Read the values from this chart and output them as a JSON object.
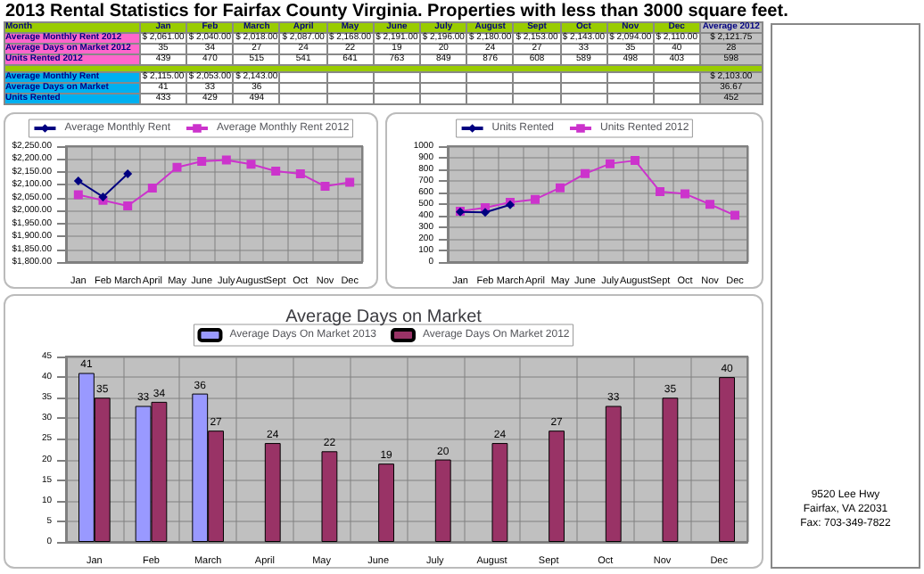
{
  "chart_data": [
    {
      "type": "other",
      "title": "2013 Rental Statistics for Fairfax County Virginia. Properties with less than 3000 square feet.",
      "xlabel": "Month",
      "categories": [
        "Jan",
        "Feb",
        "March",
        "April",
        "May",
        "June",
        "July",
        "August",
        "Sept",
        "Oct",
        "Nov",
        "Dec",
        "Average 2012"
      ],
      "data_labels": true,
      "series": [
        {
          "name": "Average Monthly Rent 2012",
          "colors": [
            "#ffffff",
            "#ffffff",
            "#ffffff",
            "#ffffff",
            "#ffffff",
            "#ffffff",
            "#ffffff",
            "#ffffff",
            "#ffffff",
            "#ffffff",
            "#ffffff",
            "#ffffff",
            "#c0c0c0"
          ],
          "values": [
            2061,
            2040,
            2018,
            2087,
            2168,
            2191,
            2196,
            2180,
            2153,
            2143,
            2094,
            2110,
            2121.75
          ],
          "value_labels": [
            "$ 2,061.00",
            "$ 2,040.00",
            "$ 2,018.00",
            "$ 2,087.00",
            "$ 2,168.00",
            "$ 2,191.00",
            "$ 2,196.00",
            "$ 2,180.00",
            "$ 2,153.00",
            "$ 2,143.00",
            "$ 2,094.00",
            "$ 2,110.00",
            "$ 2,121.75"
          ]
        },
        {
          "name": "Average Days on Market 2012",
          "colors": [
            "#ffffff",
            "#ffffff",
            "#ffffff",
            "#ffffff",
            "#ffffff",
            "#ffffff",
            "#ffffff",
            "#ffffff",
            "#ffffff",
            "#ffffff",
            "#ffffff",
            "#ffffff",
            "#c0c0c0"
          ],
          "values": [
            35,
            34,
            27,
            24,
            22,
            19,
            20,
            24,
            27,
            33,
            35,
            40,
            28
          ]
        },
        {
          "name": "Units Rented 2012",
          "colors": [
            "#ffffff",
            "#ffffff",
            "#ffffff",
            "#ffffff",
            "#ffffff",
            "#ffffff",
            "#ffffff",
            "#ffffff",
            "#ffffff",
            "#ffffff",
            "#ffffff",
            "#ffffff",
            "#c0c0c0"
          ],
          "values": [
            439,
            470,
            515,
            541,
            641,
            763,
            849,
            876,
            608,
            589,
            498,
            403,
            598
          ]
        },
        {
          "name": "Average Monthly Rent",
          "colors": [
            "#ffffff",
            "#ffffff",
            "#ffffff",
            "#ffffff",
            "#ffffff",
            "#ffffff",
            "#ffffff",
            "#ffffff",
            "#ffffff",
            "#ffffff",
            "#ffffff",
            "#ffffff",
            "#c0c0c0"
          ],
          "values": [
            2115,
            2053,
            2143,
            null,
            null,
            null,
            null,
            null,
            null,
            null,
            null,
            null,
            2103
          ],
          "value_labels": [
            "$ 2,115.00",
            "$ 2,053.00",
            "$ 2,143.00",
            null,
            null,
            null,
            null,
            null,
            null,
            null,
            null,
            null,
            "$ 2,103.00"
          ]
        },
        {
          "name": "Average Days on Market",
          "colors": [
            "#ffffff",
            "#ffffff",
            "#ffffff",
            "#ffffff",
            "#ffffff",
            "#ffffff",
            "#ffffff",
            "#ffffff",
            "#ffffff",
            "#ffffff",
            "#ffffff",
            "#ffffff",
            "#c0c0c0"
          ],
          "values": [
            41,
            33,
            36,
            null,
            null,
            null,
            null,
            null,
            null,
            null,
            null,
            null,
            36.67
          ]
        },
        {
          "name": "Units Rented",
          "colors": [
            "#ffffff",
            "#ffffff",
            "#ffffff",
            "#ffffff",
            "#ffffff",
            "#ffffff",
            "#ffffff",
            "#ffffff",
            "#ffffff",
            "#ffffff",
            "#ffffff",
            "#ffffff",
            "#c0c0c0"
          ],
          "values": [
            433,
            429,
            494,
            null,
            null,
            null,
            null,
            null,
            null,
            null,
            null,
            null,
            452
          ]
        }
      ],
      "annotations": [
        "9520 Lee Hwy",
        "Fairfax, VA 22031",
        "Fax: 703-349-7822"
      ]
    },
    {
      "type": "line",
      "categories": [
        "Jan",
        "Feb",
        "March",
        "April",
        "May",
        "June",
        "July",
        "August",
        "Sept",
        "Oct",
        "Nov",
        "Dec"
      ],
      "legend": "top",
      "grid": true,
      "ylim": [
        1800,
        2250
      ],
      "yticks": [
        {
          "value": 1800,
          "label": "$1,800.00"
        },
        {
          "value": 1850,
          "label": "$1,850.00"
        },
        {
          "value": 1900,
          "label": "$1,900.00"
        },
        {
          "value": 1950,
          "label": "$1,950.00"
        },
        {
          "value": 2000,
          "label": "$2,000.00"
        },
        {
          "value": 2050,
          "label": "$2,050.00"
        },
        {
          "value": 2100,
          "label": "$2,100.00"
        },
        {
          "value": 2150,
          "label": "$2,150.00"
        },
        {
          "value": 2200,
          "label": "$2,200.00"
        },
        {
          "value": 2250,
          "label": "$2,250.00"
        }
      ],
      "series": [
        {
          "name": "Average Monthly Rent",
          "color": "#000080",
          "marker": "diamond",
          "values": [
            2115,
            2053,
            2143,
            null,
            null,
            null,
            null,
            null,
            null,
            null,
            null,
            null
          ]
        },
        {
          "name": "Average Monthly Rent 2012",
          "color": "#cc33cc",
          "marker": "square",
          "values": [
            2061,
            2040,
            2018,
            2087,
            2168,
            2191,
            2196,
            2180,
            2153,
            2143,
            2094,
            2110
          ]
        }
      ]
    },
    {
      "type": "line",
      "categories": [
        "Jan",
        "Feb",
        "March",
        "April",
        "May",
        "June",
        "July",
        "August",
        "Sept",
        "Oct",
        "Nov",
        "Dec"
      ],
      "legend": "top",
      "grid": true,
      "ylim": [
        0,
        1000
      ],
      "yticks": [
        0,
        100,
        200,
        300,
        400,
        500,
        600,
        700,
        800,
        900,
        1000
      ],
      "series": [
        {
          "name": "Units Rented",
          "color": "#000080",
          "marker": "diamond",
          "values": [
            433,
            429,
            494,
            null,
            null,
            null,
            null,
            null,
            null,
            null,
            null,
            null
          ]
        },
        {
          "name": "Units Rented 2012",
          "color": "#cc33cc",
          "marker": "square",
          "values": [
            439,
            470,
            515,
            541,
            641,
            763,
            849,
            876,
            608,
            589,
            498,
            403
          ]
        }
      ]
    },
    {
      "type": "bar",
      "title": "Average Days on Market",
      "categories": [
        "Jan",
        "Feb",
        "March",
        "April",
        "May",
        "June",
        "July",
        "August",
        "Sept",
        "Oct",
        "Nov",
        "Dec"
      ],
      "legend": "top",
      "grid": true,
      "data_labels": true,
      "ylim": [
        0,
        45
      ],
      "yticks": [
        0,
        5,
        10,
        15,
        20,
        25,
        30,
        35,
        40,
        45
      ],
      "series": [
        {
          "name": "Average Days On Market 2013",
          "color": "#9999ff",
          "values": [
            41,
            33,
            36,
            null,
            null,
            null,
            null,
            null,
            null,
            null,
            null,
            null
          ]
        },
        {
          "name": "Average Days On Market 2012",
          "color": "#993366",
          "values": [
            35,
            34,
            27,
            24,
            22,
            19,
            20,
            24,
            27,
            33,
            35,
            40
          ]
        }
      ]
    }
  ]
}
